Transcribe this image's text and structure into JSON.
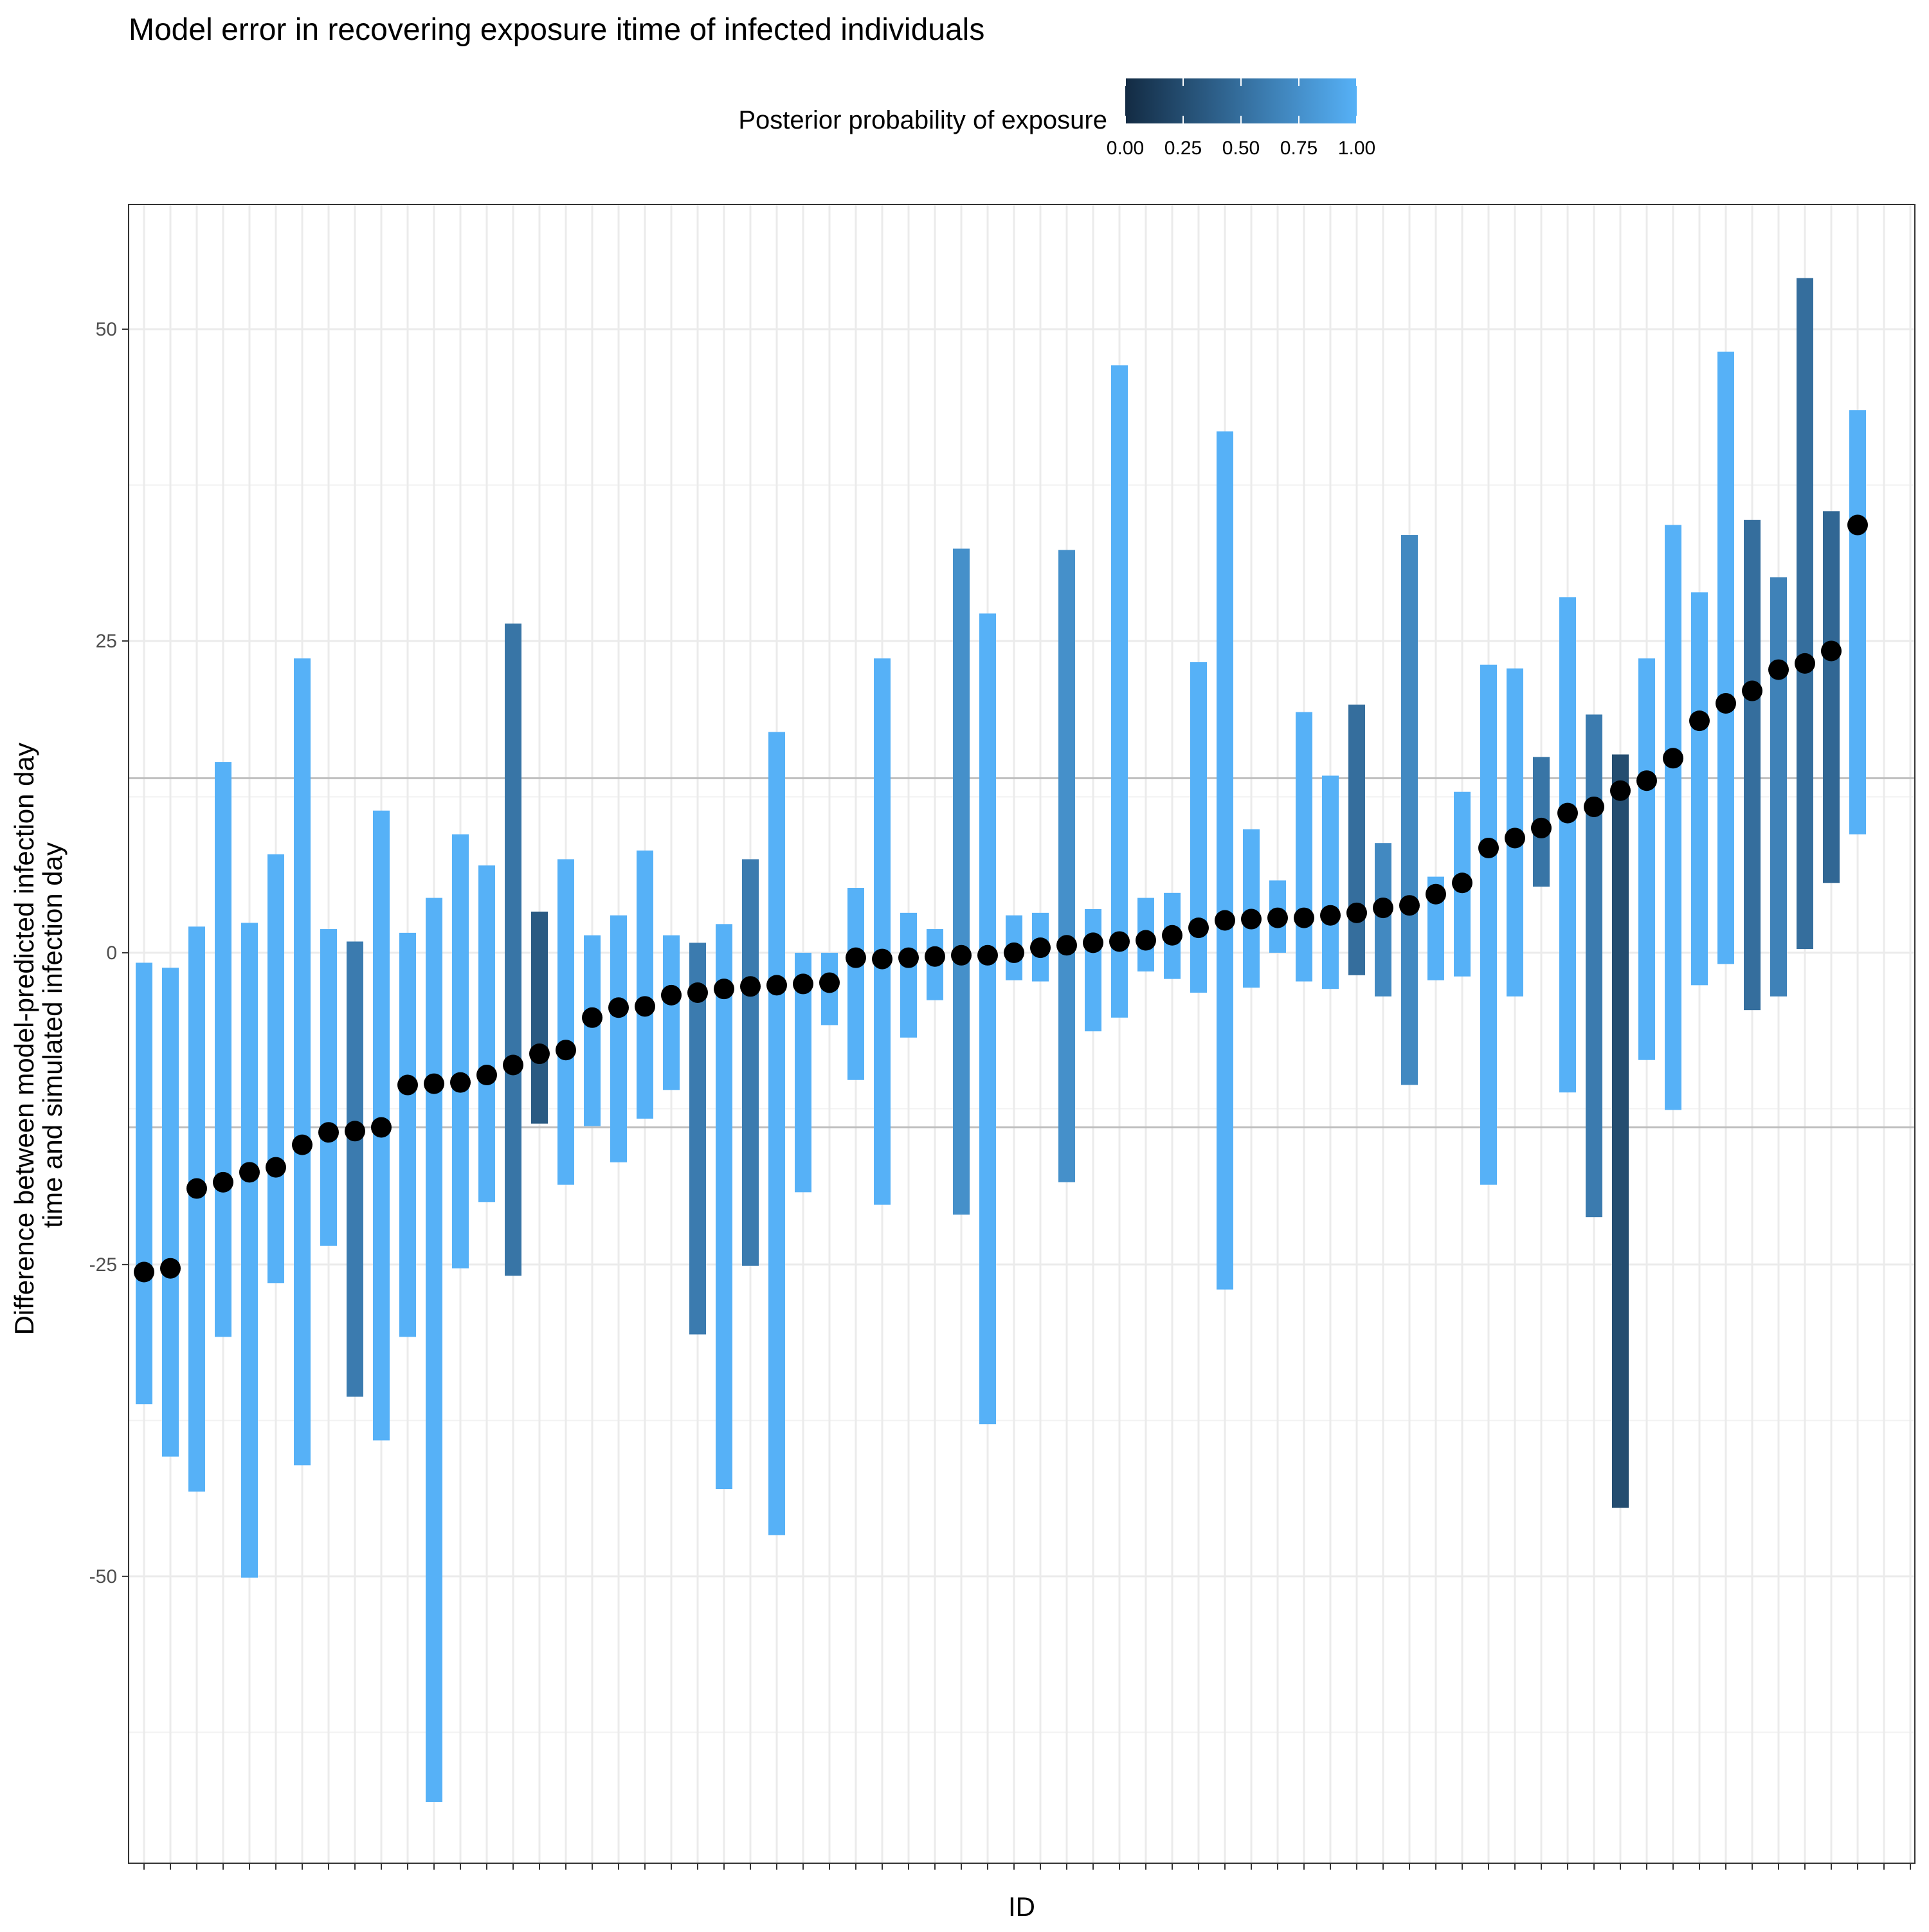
{
  "chart_data": {
    "type": "errorbar-scatter",
    "title": "Model error in recovering exposure itime of infected individuals",
    "xlabel": "ID",
    "ylabel_lines": [
      "Difference between model-predicted infection day",
      "time and simulated infection day"
    ],
    "ylim": [
      -73,
      60
    ],
    "y_ticks": [
      -50,
      -25,
      0,
      25,
      50
    ],
    "grid": true,
    "reference_lines": [
      14,
      -14
    ],
    "legend": {
      "title": "Posterior probability of exposure",
      "placement": "top",
      "ticks": [
        "0.00",
        "0.25",
        "0.50",
        "0.75",
        "1.00"
      ],
      "color_low": "#132B43",
      "color_high": "#56B1F7"
    },
    "points": [
      {
        "y": -25.6,
        "lo": -36.2,
        "hi": -0.8,
        "p": 1.0
      },
      {
        "y": -25.3,
        "lo": -40.4,
        "hi": -1.2,
        "p": 1.0
      },
      {
        "y": -18.9,
        "lo": -43.2,
        "hi": 2.1,
        "p": 1.0
      },
      {
        "y": -18.4,
        "lo": -30.8,
        "hi": 15.3,
        "p": 1.0
      },
      {
        "y": -17.6,
        "lo": -50.1,
        "hi": 2.4,
        "p": 1.0
      },
      {
        "y": -17.2,
        "lo": -26.5,
        "hi": 7.9,
        "p": 1.0
      },
      {
        "y": -15.4,
        "lo": -41.1,
        "hi": 23.6,
        "p": 1.0
      },
      {
        "y": -14.4,
        "lo": -23.5,
        "hi": 1.9,
        "p": 1.0
      },
      {
        "y": -14.3,
        "lo": -35.6,
        "hi": 0.9,
        "p": 0.6
      },
      {
        "y": -14.0,
        "lo": -39.1,
        "hi": 11.4,
        "p": 1.0
      },
      {
        "y": -10.6,
        "lo": -30.8,
        "hi": 1.6,
        "p": 1.0
      },
      {
        "y": -10.5,
        "lo": -68.1,
        "hi": 4.4,
        "p": 1.0
      },
      {
        "y": -10.4,
        "lo": -25.3,
        "hi": 9.5,
        "p": 1.0
      },
      {
        "y": -9.8,
        "lo": -20.0,
        "hi": 7.0,
        "p": 1.0
      },
      {
        "y": -9.0,
        "lo": -25.9,
        "hi": 26.4,
        "p": 0.55
      },
      {
        "y": -8.1,
        "lo": -13.7,
        "hi": 3.3,
        "p": 0.35
      },
      {
        "y": -7.8,
        "lo": -18.6,
        "hi": 7.5,
        "p": 1.0
      },
      {
        "y": -5.2,
        "lo": -13.9,
        "hi": 1.4,
        "p": 1.0
      },
      {
        "y": -4.4,
        "lo": -16.8,
        "hi": 3.0,
        "p": 1.0
      },
      {
        "y": -4.3,
        "lo": -13.3,
        "hi": 8.2,
        "p": 1.0
      },
      {
        "y": -3.4,
        "lo": -11.0,
        "hi": 1.4,
        "p": 1.0
      },
      {
        "y": -3.2,
        "lo": -30.6,
        "hi": 0.8,
        "p": 0.6
      },
      {
        "y": -2.9,
        "lo": -43.0,
        "hi": 2.3,
        "p": 1.0
      },
      {
        "y": -2.7,
        "lo": -25.1,
        "hi": 7.5,
        "p": 0.6
      },
      {
        "y": -2.6,
        "lo": -46.7,
        "hi": 17.7,
        "p": 1.0
      },
      {
        "y": -2.5,
        "lo": -19.2,
        "hi": 0.0,
        "p": 1.0
      },
      {
        "y": -2.4,
        "lo": -5.8,
        "hi": 0.0,
        "p": 1.0
      },
      {
        "y": -0.4,
        "lo": -10.2,
        "hi": 5.2,
        "p": 1.0
      },
      {
        "y": -0.5,
        "lo": -20.2,
        "hi": 23.6,
        "p": 1.0
      },
      {
        "y": -0.4,
        "lo": -6.8,
        "hi": 3.2,
        "p": 1.0
      },
      {
        "y": -0.3,
        "lo": -3.8,
        "hi": 1.9,
        "p": 1.0
      },
      {
        "y": -0.2,
        "lo": -21.0,
        "hi": 32.4,
        "p": 0.75
      },
      {
        "y": -0.2,
        "lo": -37.8,
        "hi": 27.2,
        "p": 1.0
      },
      {
        "y": 0.0,
        "lo": -2.2,
        "hi": 3.0,
        "p": 1.0
      },
      {
        "y": 0.4,
        "lo": -2.3,
        "hi": 3.2,
        "p": 1.0
      },
      {
        "y": 0.6,
        "lo": -18.4,
        "hi": 32.3,
        "p": 0.75
      },
      {
        "y": 0.8,
        "lo": -6.3,
        "hi": 3.5,
        "p": 1.0
      },
      {
        "y": 0.9,
        "lo": -5.2,
        "hi": 47.1,
        "p": 1.0
      },
      {
        "y": 1.0,
        "lo": -1.5,
        "hi": 4.4,
        "p": 1.0
      },
      {
        "y": 1.4,
        "lo": -2.1,
        "hi": 4.8,
        "p": 1.0
      },
      {
        "y": 2.0,
        "lo": -3.2,
        "hi": 23.3,
        "p": 1.0
      },
      {
        "y": 2.6,
        "lo": -27.0,
        "hi": 41.8,
        "p": 1.0
      },
      {
        "y": 2.7,
        "lo": -2.8,
        "hi": 9.9,
        "p": 1.0
      },
      {
        "y": 2.8,
        "lo": 0.0,
        "hi": 5.8,
        "p": 1.0
      },
      {
        "y": 2.8,
        "lo": -2.3,
        "hi": 19.3,
        "p": 1.0
      },
      {
        "y": 3.0,
        "lo": -2.9,
        "hi": 14.2,
        "p": 1.0
      },
      {
        "y": 3.2,
        "lo": -1.8,
        "hi": 19.9,
        "p": 0.5
      },
      {
        "y": 3.6,
        "lo": -3.5,
        "hi": 8.8,
        "p": 0.7
      },
      {
        "y": 3.8,
        "lo": -10.6,
        "hi": 33.5,
        "p": 0.7
      },
      {
        "y": 4.7,
        "lo": -2.2,
        "hi": 6.1,
        "p": 1.0
      },
      {
        "y": 5.6,
        "lo": -1.9,
        "hi": 12.9,
        "p": 1.0
      },
      {
        "y": 8.4,
        "lo": -18.6,
        "hi": 23.1,
        "p": 1.0
      },
      {
        "y": 9.2,
        "lo": -3.5,
        "hi": 22.8,
        "p": 1.0
      },
      {
        "y": 10.0,
        "lo": 5.3,
        "hi": 15.7,
        "p": 0.55
      },
      {
        "y": 11.2,
        "lo": -11.2,
        "hi": 28.5,
        "p": 1.0
      },
      {
        "y": 11.7,
        "lo": -21.2,
        "hi": 19.1,
        "p": 0.6
      },
      {
        "y": 13.0,
        "lo": -44.5,
        "hi": 15.9,
        "p": 0.25
      },
      {
        "y": 13.8,
        "lo": -8.6,
        "hi": 23.6,
        "p": 1.0
      },
      {
        "y": 15.6,
        "lo": -12.6,
        "hi": 34.3,
        "p": 1.0
      },
      {
        "y": 18.6,
        "lo": -2.6,
        "hi": 28.9,
        "p": 1.0
      },
      {
        "y": 20.0,
        "lo": -0.9,
        "hi": 48.2,
        "p": 1.0
      },
      {
        "y": 21.0,
        "lo": -4.6,
        "hi": 34.7,
        "p": 0.5
      },
      {
        "y": 22.7,
        "lo": -3.5,
        "hi": 30.1,
        "p": 0.65
      },
      {
        "y": 23.2,
        "lo": 0.3,
        "hi": 54.1,
        "p": 0.5
      },
      {
        "y": 24.2,
        "lo": 5.6,
        "hi": 35.4,
        "p": 0.45
      },
      {
        "y": 34.3,
        "lo": 9.5,
        "hi": 43.5,
        "p": 1.0
      }
    ]
  }
}
